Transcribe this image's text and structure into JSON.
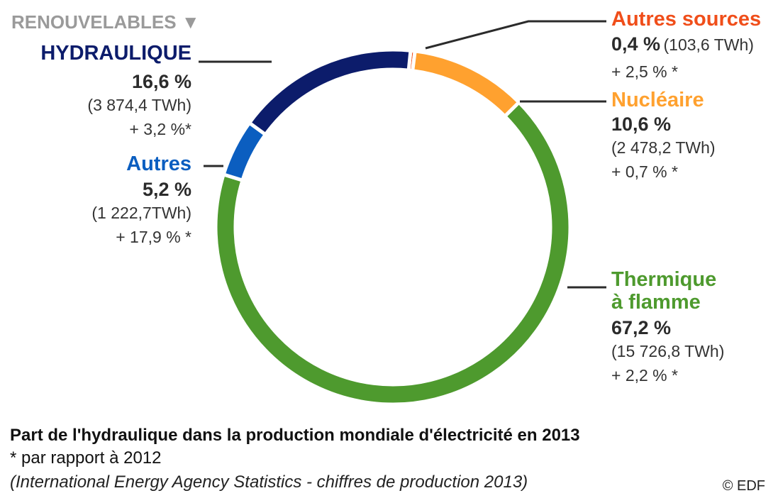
{
  "header": {
    "group_label": "RENOUVELABLES",
    "group_arrow": "▼"
  },
  "chart_data": {
    "type": "pie",
    "title": "Part de l'hydraulique dans la production mondiale d'électricité en 2013",
    "slices": [
      {
        "key": "autres_sources",
        "name": "Autres sources",
        "percent": 0.4,
        "percent_label": "0,4 %",
        "twh_label": "(103,6 TWh)",
        "change_label": "+ 2,5 % *",
        "color": "#f04e1a"
      },
      {
        "key": "nucleaire",
        "name": "Nucléaire",
        "percent": 10.6,
        "percent_label": "10,6 %",
        "twh_label": "(2 478,2 TWh)",
        "change_label": "+ 0,7 % *",
        "color": "#ffa12f"
      },
      {
        "key": "thermique",
        "name": "Thermique",
        "name_line2": "à flamme",
        "percent": 67.2,
        "percent_label": "67,2 %",
        "twh_label": "(15 726,8 TWh)",
        "change_label": "+ 2,2 % *",
        "color": "#4e9a2e"
      },
      {
        "key": "autres",
        "name": "Autres",
        "percent": 5.2,
        "percent_label": "5,2 %",
        "twh_label": "(1 222,7TWh)",
        "change_label": "+ 17,9 % *",
        "color": "#0b5ec0"
      },
      {
        "key": "hydraulique",
        "name": "HYDRAULIQUE",
        "percent": 16.6,
        "percent_label": "16,6 %",
        "twh_label": "(3 874,4  TWh)",
        "change_label": "+ 3,2 %*",
        "color": "#0c1c6b"
      }
    ]
  },
  "footer": {
    "footnote": "* par rapport à 2012",
    "source": "(International Energy Agency Statistics - chiffres de production 2013)",
    "copyright": "© EDF"
  }
}
